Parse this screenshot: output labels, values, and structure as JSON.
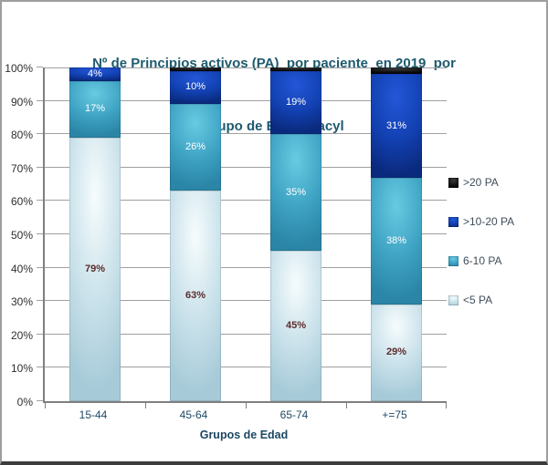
{
  "chart_data": {
    "type": "stacked-bar-100",
    "title": "Nº de Principios activos (PA)  por paciente  en 2019  por grupo de Edad- Sacyl",
    "title_lines": [
      "Nº de Principios activos (PA)  por paciente  en 2019  por",
      "grupo de Edad- Sacyl"
    ],
    "xlabel": "Grupos de Edad",
    "categories": [
      "15-44",
      "45-64",
      "65-74",
      "+=75"
    ],
    "series": [
      {
        "name": "<5 PA",
        "values": [
          79,
          63,
          45,
          29
        ],
        "labels": [
          "79%",
          "63%",
          "45%",
          "29%"
        ],
        "label_color": "#5c2c2c",
        "color": {
          "light": "#f6fcfd",
          "base": "#c9e1ea",
          "edge": "#a6cad8"
        }
      },
      {
        "name": "6-10 PA",
        "values": [
          17,
          26,
          35,
          38
        ],
        "labels": [
          "17%",
          "26%",
          "35%",
          "38%"
        ],
        "label_color": "#ffffff",
        "color": {
          "light": "#68cbe2",
          "base": "#3fa3c4",
          "edge": "#2a85a6"
        }
      },
      {
        "name": ">10-20 PA",
        "values": [
          4,
          10,
          19,
          31
        ],
        "labels": [
          "4%",
          "10%",
          "19%",
          "31%"
        ],
        "label_color": "#ffffff",
        "color": {
          "light": "#2457d8",
          "base": "#1241b2",
          "edge": "#0a2a7e"
        }
      },
      {
        "name": ">20 PA",
        "values": [
          0,
          1,
          1,
          2
        ],
        "labels": [
          null,
          null,
          null,
          null
        ],
        "label_color": "#ffffff",
        "color": {
          "light": "#3c3c3c",
          "base": "#161616",
          "edge": "#000000"
        }
      }
    ],
    "y_axis": {
      "min": 0,
      "max": 100,
      "tick_step": 10,
      "grid": true,
      "ticks": [
        "0%",
        "10%",
        "20%",
        "30%",
        "40%",
        "50%",
        "60%",
        "70%",
        "80%",
        "90%",
        "100%"
      ]
    },
    "legend": {
      "position": "right",
      "items_top_to_bottom": [
        ">20 PA",
        ">10-20 PA",
        "6-10 PA",
        "<5 PA"
      ]
    }
  },
  "styles": {
    "title_color": "#1e5a6e",
    "category_label_color": "#1c4864",
    "x_axis_title_color": "#1c4864",
    "y_tick_label_color": "#2e2e2e",
    "grid_color": "#a0a0a0",
    "axis_line_color": "#7f7f7f",
    "legend_text_color": "#3f4e5a",
    "background": "#ffffff",
    "frame_border_color": "#9e9e9e",
    "frame_bottom_border_color": "#3c3c3c"
  }
}
